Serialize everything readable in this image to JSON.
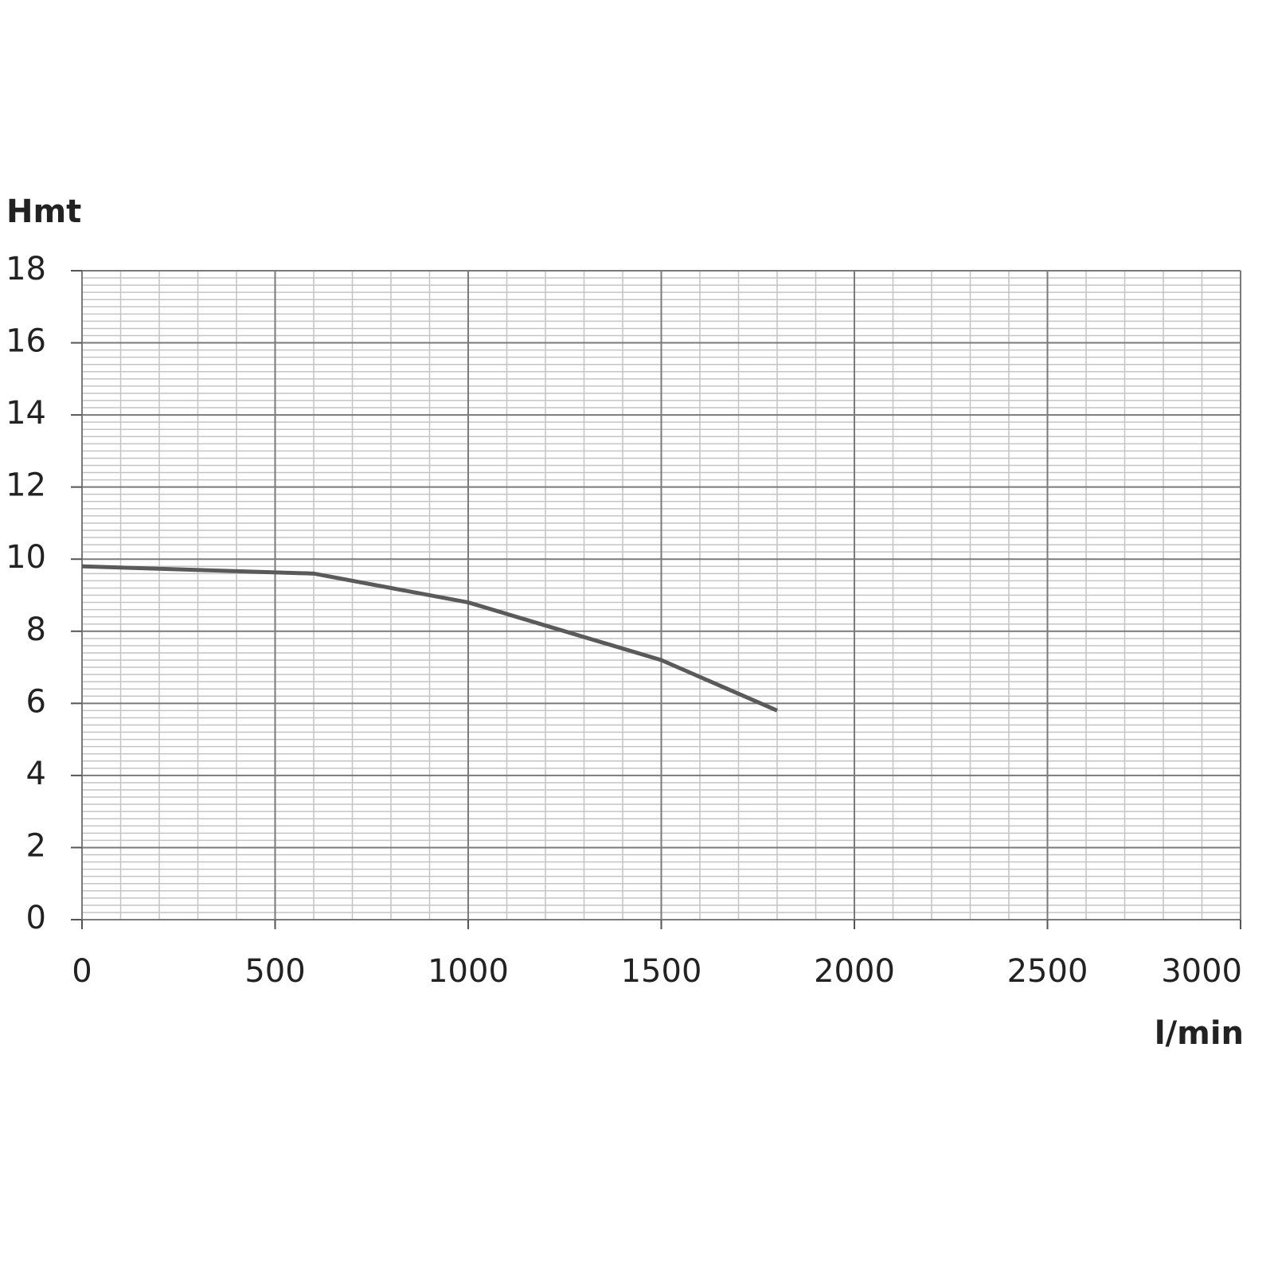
{
  "chart_data": {
    "type": "line",
    "ylabel": "Hmt",
    "xlabel": "l/min",
    "x": [
      0,
      600,
      1000,
      1500,
      1800
    ],
    "series": [
      {
        "color": "#5a5a5a",
        "values": [
          9.8,
          9.6,
          8.8,
          7.2,
          5.8
        ]
      }
    ],
    "xlim": [
      0,
      3000
    ],
    "xticks": [
      0,
      500,
      1000,
      1500,
      2000,
      2500,
      3000
    ],
    "ylim": [
      0,
      18
    ],
    "yticks": [
      0,
      2,
      4,
      6,
      8,
      10,
      12,
      14,
      16,
      18
    ],
    "grid": true,
    "minor_divisions": {
      "x": 5,
      "y": 10
    }
  }
}
